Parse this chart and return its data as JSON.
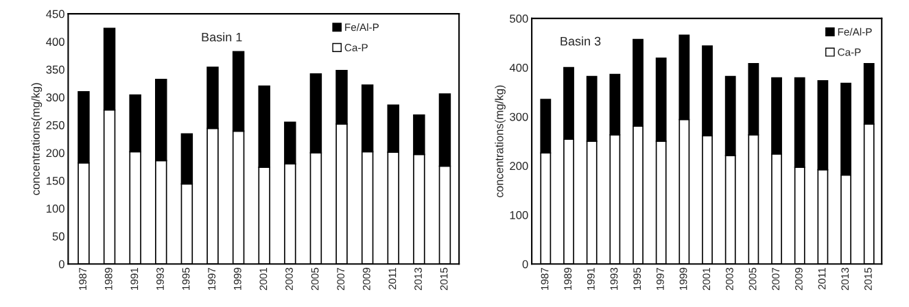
{
  "chart_data": [
    {
      "type": "bar",
      "title": "Basin 1",
      "ylabel": "concentrations(mg/kg)",
      "stacked": true,
      "legend": "top right",
      "grid": false,
      "categories": [
        "1987",
        "1989",
        "1991",
        "1993",
        "1995",
        "1997",
        "1999",
        "2001",
        "2003",
        "2005",
        "2007",
        "2009",
        "2011",
        "2013",
        "2015"
      ],
      "ylim": [
        0,
        450
      ],
      "yticks": [
        0,
        50,
        100,
        150,
        200,
        250,
        300,
        350,
        400,
        450
      ],
      "series": [
        {
          "name": "Ca-P",
          "color": "#ffffff",
          "values": [
            182,
            277,
            202,
            186,
            144,
            244,
            239,
            174,
            180,
            200,
            252,
            202,
            201,
            197,
            176
          ]
        },
        {
          "name": "Fe/Al-P",
          "color": "#000000",
          "values": [
            128,
            147,
            102,
            146,
            90,
            110,
            143,
            146,
            75,
            142,
            96,
            120,
            85,
            71,
            130
          ]
        }
      ]
    },
    {
      "type": "bar",
      "title": "Basin 3",
      "ylabel": "concentrations(mg/kg)",
      "stacked": true,
      "legend": "top right",
      "grid": false,
      "categories": [
        "1987",
        "1989",
        "1991",
        "1993",
        "1995",
        "1997",
        "1999",
        "2001",
        "2003",
        "2005",
        "2007",
        "2009",
        "2011",
        "2013",
        "2015"
      ],
      "ylim": [
        0,
        500
      ],
      "yticks": [
        0,
        100,
        200,
        300,
        400,
        500
      ],
      "series": [
        {
          "name": "Ca-P",
          "color": "#ffffff",
          "values": [
            226,
            254,
            250,
            263,
            281,
            250,
            294,
            261,
            221,
            263,
            224,
            197,
            192,
            181,
            285
          ]
        },
        {
          "name": "Fe/Al-P",
          "color": "#000000",
          "values": [
            109,
            146,
            132,
            123,
            176,
            169,
            172,
            183,
            161,
            145,
            155,
            182,
            181,
            187,
            123
          ]
        }
      ]
    }
  ]
}
